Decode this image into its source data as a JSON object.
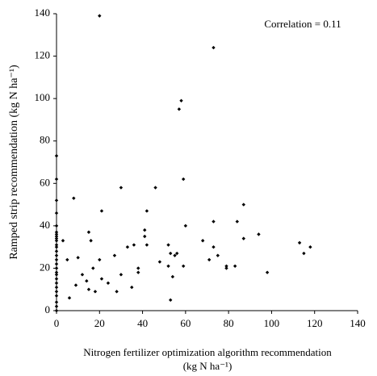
{
  "chart_data": {
    "type": "scatter",
    "ylabel": "Ramped strip recommendation (kg N ha⁻¹)",
    "xlabel": [
      "Nitrogen fertilizer optimization algorithm recommendation",
      "(kg N ha⁻¹)"
    ],
    "annotation": "Correlation = 0.11",
    "color": "#000000",
    "x": [
      0,
      0,
      0,
      0,
      0,
      0,
      0,
      0,
      0,
      0,
      0,
      0,
      0,
      0,
      0,
      0,
      0,
      0,
      0,
      0,
      0,
      0,
      0,
      0,
      0,
      0,
      0,
      20,
      73,
      58,
      57,
      59,
      30,
      46,
      8,
      21,
      42,
      87,
      73,
      84,
      60,
      33,
      3,
      15,
      16,
      41,
      41,
      42,
      36,
      52,
      53,
      55,
      56,
      68,
      73,
      75,
      79,
      79,
      83,
      87,
      94,
      98,
      113,
      115,
      118,
      5,
      10,
      6,
      9,
      12,
      14,
      15,
      17,
      18,
      20,
      21,
      24,
      27,
      28,
      30,
      35,
      38,
      38,
      52,
      53,
      54,
      59,
      71,
      48
    ],
    "values": [
      73,
      62,
      52,
      46,
      40,
      37,
      36,
      35,
      34,
      33,
      31,
      30,
      28,
      26,
      24,
      22,
      20,
      18,
      17,
      15,
      13,
      11,
      9,
      7,
      4,
      2,
      0,
      139,
      124,
      99,
      95,
      62,
      58,
      58,
      53,
      47,
      47,
      50,
      42,
      42,
      40,
      30,
      33,
      37,
      33,
      38,
      35,
      31,
      31,
      31,
      27,
      26,
      27,
      33,
      30,
      26,
      21,
      20,
      21,
      34,
      36,
      18,
      32,
      27,
      30,
      24,
      25,
      6,
      12,
      17,
      14,
      10,
      20,
      9,
      24,
      15,
      13,
      26,
      9,
      17,
      11,
      20,
      18,
      21,
      5,
      16,
      21,
      24,
      23
    ],
    "xlim": [
      0,
      140
    ],
    "xticks": [
      0,
      20,
      40,
      60,
      80,
      100,
      120,
      140
    ],
    "ylim": [
      0,
      140
    ],
    "yticks": [
      0,
      20,
      40,
      60,
      80,
      100,
      120,
      140
    ]
  }
}
